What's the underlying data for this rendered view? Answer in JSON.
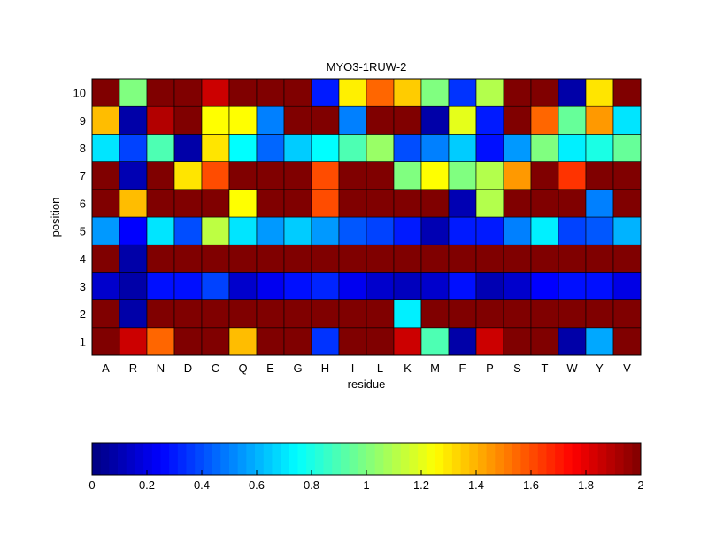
{
  "chart_data": {
    "type": "heatmap",
    "title": "MYO3-1RUW-2",
    "xlabel": "residue",
    "ylabel": "position",
    "x_categories": [
      "A",
      "R",
      "N",
      "D",
      "C",
      "Q",
      "E",
      "G",
      "H",
      "I",
      "L",
      "K",
      "M",
      "F",
      "P",
      "S",
      "T",
      "W",
      "Y",
      "V"
    ],
    "y_categories": [
      "1",
      "2",
      "3",
      "4",
      "5",
      "6",
      "7",
      "8",
      "9",
      "10"
    ],
    "colormap": "jet",
    "clim": [
      0,
      2
    ],
    "colorbar": {
      "placement": "bottom",
      "ticks": [
        "0",
        "0.2",
        "0.4",
        "0.6",
        "0.8",
        "1",
        "1.2",
        "1.4",
        "1.6",
        "1.8",
        "2"
      ]
    },
    "values_by_position": {
      "1": [
        2,
        1.85,
        1.55,
        2,
        2,
        1.38,
        2,
        2,
        0.35,
        2,
        2,
        1.85,
        0.9,
        0.08,
        1.85,
        2,
        2,
        0.08,
        0.58,
        2
      ],
      "2": [
        2,
        0.08,
        2,
        2,
        2,
        2,
        2,
        2,
        2,
        2,
        2,
        0.72,
        2,
        2,
        2,
        2,
        2,
        2,
        2,
        2
      ],
      "3": [
        0.15,
        0.08,
        0.28,
        0.28,
        0.38,
        0.15,
        0.22,
        0.28,
        0.32,
        0.22,
        0.15,
        0.12,
        0.15,
        0.28,
        0.1,
        0.15,
        0.25,
        0.28,
        0.28,
        0.2
      ],
      "4": [
        2,
        0.08,
        2,
        2,
        2,
        2,
        2,
        2,
        2,
        2,
        2,
        2,
        2,
        2,
        2,
        2,
        2,
        2,
        2,
        2
      ],
      "5": [
        0.55,
        0.25,
        0.7,
        0.4,
        1.12,
        0.7,
        0.55,
        0.65,
        0.55,
        0.42,
        0.38,
        0.3,
        0.1,
        0.3,
        0.3,
        0.5,
        0.72,
        0.38,
        0.42,
        0.6
      ],
      "6": [
        2,
        1.38,
        2,
        2,
        2,
        1.25,
        2,
        2,
        1.6,
        2,
        2,
        2,
        2,
        0.1,
        1.1,
        2,
        2,
        2,
        0.5,
        2
      ],
      "7": [
        2,
        0.1,
        2,
        1.3,
        1.6,
        2,
        2,
        2,
        1.6,
        2,
        2,
        1.0,
        1.25,
        1.0,
        1.1,
        1.45,
        2,
        1.65,
        2,
        2
      ],
      "8": [
        0.7,
        0.38,
        0.9,
        0.08,
        1.3,
        0.75,
        0.45,
        0.65,
        0.75,
        0.9,
        1.05,
        0.4,
        0.5,
        0.65,
        0.28,
        0.55,
        1.0,
        0.72,
        0.8,
        0.95
      ],
      "9": [
        1.38,
        0.08,
        1.9,
        2,
        1.25,
        1.25,
        0.5,
        2,
        2,
        0.5,
        2,
        2,
        0.08,
        1.2,
        0.3,
        2,
        1.55,
        0.95,
        1.45,
        0.7
      ],
      "10": [
        2,
        1.0,
        2,
        2,
        1.85,
        2,
        2,
        2,
        0.3,
        1.28,
        1.55,
        1.35,
        1.0,
        0.35,
        1.1,
        2,
        2,
        0.08,
        1.3,
        2
      ]
    }
  }
}
